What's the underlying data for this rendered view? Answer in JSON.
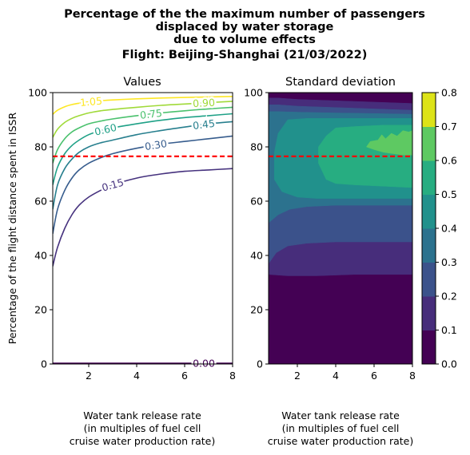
{
  "figure": {
    "title_lines": [
      "Percentage of the the maximum number of passengers",
      "displaced by water storage",
      "due to volume effects",
      "Flight: Beijing-Shanghai (21/03/2022)"
    ]
  },
  "chart_data": [
    {
      "type": "line",
      "title": "Values",
      "xlabel_lines": [
        "Water tank release rate",
        "(in multiples of fuel cell",
        "cruise water production rate)"
      ],
      "ylabel": "Percentage of the flight distance spent in ISSR",
      "xlim": [
        0.5,
        8
      ],
      "ylim": [
        0,
        100
      ],
      "xticks": [
        "2",
        "4",
        "6",
        "8"
      ],
      "yticks": [
        "0",
        "20",
        "40",
        "60",
        "80",
        "100"
      ],
      "grid": false,
      "contour_levels": [
        {
          "label": "0.00",
          "color": "#440154",
          "x": [
            0.5,
            8
          ],
          "y": [
            0.3,
            0.3
          ]
        },
        {
          "label": "0.15",
          "color": "#46327e",
          "x": [
            0.5,
            0.7,
            1.0,
            1.3,
            1.6,
            2.0,
            2.5,
            3.0,
            4.0,
            5.0,
            6.0,
            7.0,
            8.0
          ],
          "y": [
            36,
            43,
            50,
            55,
            58.5,
            61.5,
            64,
            66,
            68.5,
            70,
            71,
            71.5,
            72
          ]
        },
        {
          "label": "0.30",
          "color": "#365c8d",
          "x": [
            0.5,
            0.7,
            1.0,
            1.3,
            1.6,
            2.0,
            2.5,
            3.0,
            4.0,
            5.0,
            6.0,
            7.0,
            8.0
          ],
          "y": [
            48,
            57,
            64,
            68.5,
            71.5,
            74,
            76,
            77.5,
            79.5,
            81,
            82,
            83,
            84
          ]
        },
        {
          "label": "0.45",
          "color": "#277f8e",
          "x": [
            0.5,
            0.7,
            1.0,
            1.3,
            1.6,
            2.0,
            2.5,
            3.0,
            4.0,
            5.0,
            6.0,
            7.0,
            8.0
          ],
          "y": [
            57,
            66,
            72,
            75.5,
            78,
            80,
            81.5,
            82.5,
            84.5,
            86,
            87.3,
            88.5,
            89.3
          ]
        },
        {
          "label": "0.60",
          "color": "#1fa187",
          "x": [
            0.5,
            0.7,
            1.0,
            1.3,
            1.6,
            2.0,
            2.5,
            3.0,
            4.0,
            5.0,
            6.0,
            7.0,
            8.0
          ],
          "y": [
            66,
            72.5,
            77.5,
            80.5,
            82.5,
            84.5,
            86,
            87,
            88.5,
            89.8,
            90.8,
            91.5,
            92.2
          ]
        },
        {
          "label": "0.75",
          "color": "#4ac16d",
          "x": [
            0.5,
            0.7,
            1.0,
            1.3,
            1.6,
            2.0,
            2.5,
            3.0,
            4.0,
            5.0,
            6.0,
            7.0,
            8.0
          ],
          "y": [
            74,
            79,
            83,
            85.5,
            87,
            88.5,
            89.5,
            90.3,
            91.5,
            92.5,
            93.3,
            94,
            94.6
          ]
        },
        {
          "label": "0.90",
          "color": "#a0da39",
          "x": [
            0.5,
            0.7,
            1.0,
            1.3,
            1.6,
            2.0,
            2.5,
            3.0,
            4.0,
            5.0,
            6.0,
            7.0,
            8.0
          ],
          "y": [
            83.5,
            86.5,
            89,
            90.5,
            91.5,
            92.5,
            93.3,
            93.8,
            94.6,
            95.3,
            95.8,
            96.3,
            96.8
          ]
        },
        {
          "label": "1.05",
          "color": "#fde725",
          "x": [
            0.5,
            0.7,
            1.0,
            1.3,
            1.6,
            2.0,
            2.5,
            3.0,
            4.0,
            5.0,
            6.0,
            7.0,
            8.0
          ],
          "y": [
            92,
            93.5,
            94.8,
            95.6,
            96.1,
            96.6,
            97,
            97.3,
            97.7,
            98,
            98.2,
            98.4,
            98.6
          ]
        }
      ],
      "reference_line": {
        "y": 76.5,
        "color": "#ff0000",
        "style": "dashed"
      }
    },
    {
      "type": "heatmap",
      "title": "Standard deviation",
      "xlabel_lines": [
        "Water tank release rate",
        "(in multiples of fuel cell",
        "cruise water production rate)"
      ],
      "xlim": [
        0.5,
        8
      ],
      "ylim": [
        0,
        100
      ],
      "xticks": [
        "2",
        "4",
        "6",
        "8"
      ],
      "yticks": [
        "0",
        "20",
        "40",
        "60",
        "80",
        "100"
      ],
      "reference_line": {
        "y": 76.5,
        "color": "#ff0000",
        "style": "dashed"
      },
      "filled_regions": [
        {
          "level": "0.1-0.2",
          "color": "#472d7b",
          "x_left": 0.5,
          "points": [
            [
              0.5,
              33
            ],
            [
              1.5,
              32.5
            ],
            [
              3,
              32.5
            ],
            [
              5,
              33
            ],
            [
              7,
              33
            ],
            [
              8,
              33
            ],
            [
              8,
              96
            ],
            [
              6,
              96.5
            ],
            [
              4,
              97
            ],
            [
              2,
              97.5
            ],
            [
              1,
              98
            ],
            [
              0.5,
              98
            ]
          ]
        },
        {
          "level": "0.2-0.3",
          "color": "#3b528b",
          "points": [
            [
              0.5,
              37
            ],
            [
              0.9,
              41
            ],
            [
              1.5,
              43.5
            ],
            [
              2.5,
              44.5
            ],
            [
              4,
              45
            ],
            [
              6,
              45
            ],
            [
              8,
              45
            ],
            [
              8,
              93.5
            ],
            [
              6,
              94
            ],
            [
              4,
              94.5
            ],
            [
              2,
              95
            ],
            [
              1,
              95.5
            ],
            [
              0.5,
              95.5
            ]
          ]
        },
        {
          "level": "0.3-0.4",
          "color": "#2c728e",
          "points": [
            [
              0.5,
              52
            ],
            [
              1.0,
              55
            ],
            [
              1.6,
              57
            ],
            [
              2.5,
              58
            ],
            [
              4,
              58.5
            ],
            [
              6,
              58.5
            ],
            [
              8,
              58.5
            ],
            [
              8,
              92
            ],
            [
              6,
              92.3
            ],
            [
              4,
              92.5
            ],
            [
              2,
              92.8
            ],
            [
              1,
              93
            ],
            [
              0.5,
              93
            ]
          ]
        },
        {
          "level": "0.4-0.5",
          "color": "#21918c",
          "points": [
            [
              0.8,
              68
            ],
            [
              1.2,
              63.5
            ],
            [
              2,
              61.5
            ],
            [
              3,
              61
            ],
            [
              5,
              61
            ],
            [
              8,
              61
            ],
            [
              8,
              90.5
            ],
            [
              6,
              90.5
            ],
            [
              4,
              90.5
            ],
            [
              2.5,
              90.5
            ],
            [
              1.5,
              90
            ],
            [
              1.0,
              85
            ],
            [
              0.8,
              78
            ]
          ]
        },
        {
          "level": "0.5-0.6",
          "color": "#27ad81",
          "points": [
            [
              3.1,
              74
            ],
            [
              3.5,
              68
            ],
            [
              4,
              66.5
            ],
            [
              5,
              66
            ],
            [
              6.5,
              65.5
            ],
            [
              8,
              65
            ],
            [
              8,
              88
            ],
            [
              6.5,
              88
            ],
            [
              5,
              87.5
            ],
            [
              4,
              87
            ],
            [
              3.5,
              84
            ],
            [
              3.1,
              80
            ]
          ]
        },
        {
          "level": "0.6-0.7",
          "color": "#5ec962",
          "points": [
            [
              5.6,
              80
            ],
            [
              5.8,
              82
            ],
            [
              6.2,
              82.5
            ],
            [
              6.4,
              84.5
            ],
            [
              6.6,
              83
            ],
            [
              6.9,
              85
            ],
            [
              7.2,
              84
            ],
            [
              7.5,
              86
            ],
            [
              7.8,
              85.5
            ],
            [
              8,
              86
            ],
            [
              8,
              77
            ],
            [
              7.5,
              77
            ],
            [
              7,
              77.5
            ],
            [
              6.5,
              78
            ],
            [
              6,
              79
            ]
          ]
        }
      ],
      "colorbar": {
        "ticks": [
          "0.0",
          "0.1",
          "0.2",
          "0.3",
          "0.4",
          "0.5",
          "0.6",
          "0.7",
          "0.8"
        ],
        "colors": [
          "#440154",
          "#472d7b",
          "#3b528b",
          "#2c728e",
          "#21918c",
          "#27ad81",
          "#5ec962",
          "#aadc32",
          "#dde318"
        ]
      }
    }
  ]
}
